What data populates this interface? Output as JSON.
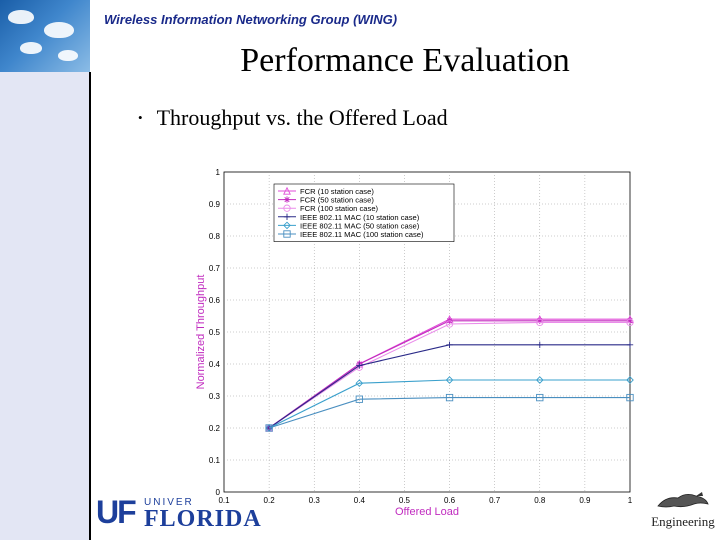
{
  "header": {
    "group_title": "Wireless Information Networking Group (WING)"
  },
  "slide": {
    "title": "Performance Evaluation",
    "bullet": "Throughput vs. the Offered Load"
  },
  "footer": {
    "uf_mark": "UF",
    "univ_text": "UNIVER",
    "florida_text": "FLORIDA",
    "engineering_text": "Engineering"
  },
  "chart_data": {
    "type": "line",
    "xlabel": "Offered Load",
    "ylabel": "Normalized Throughput",
    "xlim": [
      0.1,
      1
    ],
    "ylim": [
      0,
      1
    ],
    "x_ticks": [
      "0.1",
      "0.2",
      "0.3",
      "0.4",
      "0.5",
      "0.6",
      "0.7",
      "0.8",
      "0.9",
      "1"
    ],
    "y_ticks": [
      "0",
      "0.1",
      "0.2",
      "0.3",
      "0.4",
      "0.5",
      "0.6",
      "0.7",
      "0.8",
      "0.9",
      "1"
    ],
    "grid": true,
    "legend_position": "top-left",
    "x": [
      0.2,
      0.4,
      0.6,
      0.8,
      1.0
    ],
    "series": [
      {
        "name": "FCR (10 station case)",
        "values": [
          0.2,
          0.4,
          0.54,
          0.54,
          0.54
        ],
        "color": "#e04ed8",
        "marker": "triangle"
      },
      {
        "name": "FCR (50 station case)",
        "values": [
          0.2,
          0.4,
          0.535,
          0.535,
          0.535
        ],
        "color": "#c32bbf",
        "marker": "star"
      },
      {
        "name": "FCR (100 station case)",
        "values": [
          0.2,
          0.39,
          0.525,
          0.53,
          0.53
        ],
        "color": "#ea8cea",
        "marker": "circle"
      },
      {
        "name": "IEEE 802.11 MAC (10 station case)",
        "values": [
          0.2,
          0.395,
          0.46,
          0.46,
          0.46
        ],
        "color": "#2a2a88",
        "marker": "plus"
      },
      {
        "name": "IEEE 802.11 MAC (50 station case)",
        "values": [
          0.2,
          0.34,
          0.35,
          0.35,
          0.35
        ],
        "color": "#3aa0cc",
        "marker": "diamond"
      },
      {
        "name": "IEEE 802.11 MAC (100 station case)",
        "values": [
          0.2,
          0.29,
          0.295,
          0.295,
          0.295
        ],
        "color": "#4a8fc0",
        "marker": "square"
      }
    ]
  }
}
